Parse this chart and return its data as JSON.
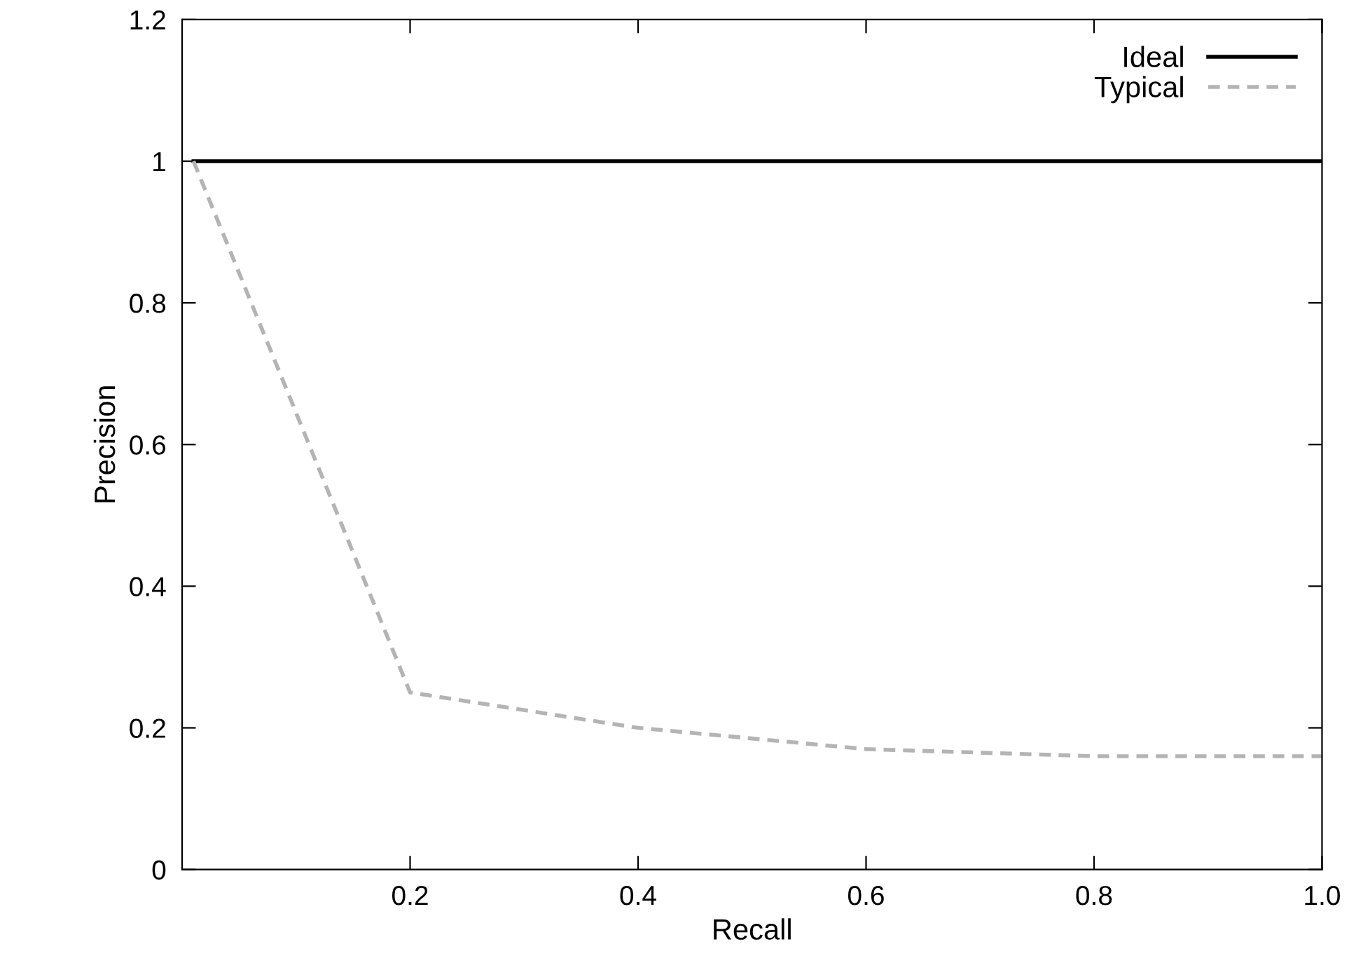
{
  "chart_data": {
    "type": "line",
    "xlabel": "Recall",
    "ylabel": "Precision",
    "xlim": [
      0,
      1.0
    ],
    "xticks": [
      0.2,
      0.4,
      0.6,
      0.8,
      {
        "value": 1.0,
        "label": "1.0"
      }
    ],
    "ylim": [
      0,
      1.2
    ],
    "yticks": [
      0,
      0.2,
      0.4,
      0.6,
      0.8,
      1,
      1.2
    ],
    "series": [
      {
        "name": "Ideal",
        "color": "#000000",
        "line_style": "solid",
        "x": [
          0.01,
          1.0
        ],
        "values": [
          1,
          1
        ]
      },
      {
        "name": "Typical",
        "color": "#b4b4b4",
        "line_style": "dashed",
        "x": [
          0.01,
          0.2,
          0.4,
          0.6,
          0.8,
          1.0
        ],
        "values": [
          1,
          0.25,
          0.2,
          0.17,
          0.16,
          0.16
        ]
      }
    ],
    "grid": false,
    "legend": "top right",
    "marker": "none"
  }
}
